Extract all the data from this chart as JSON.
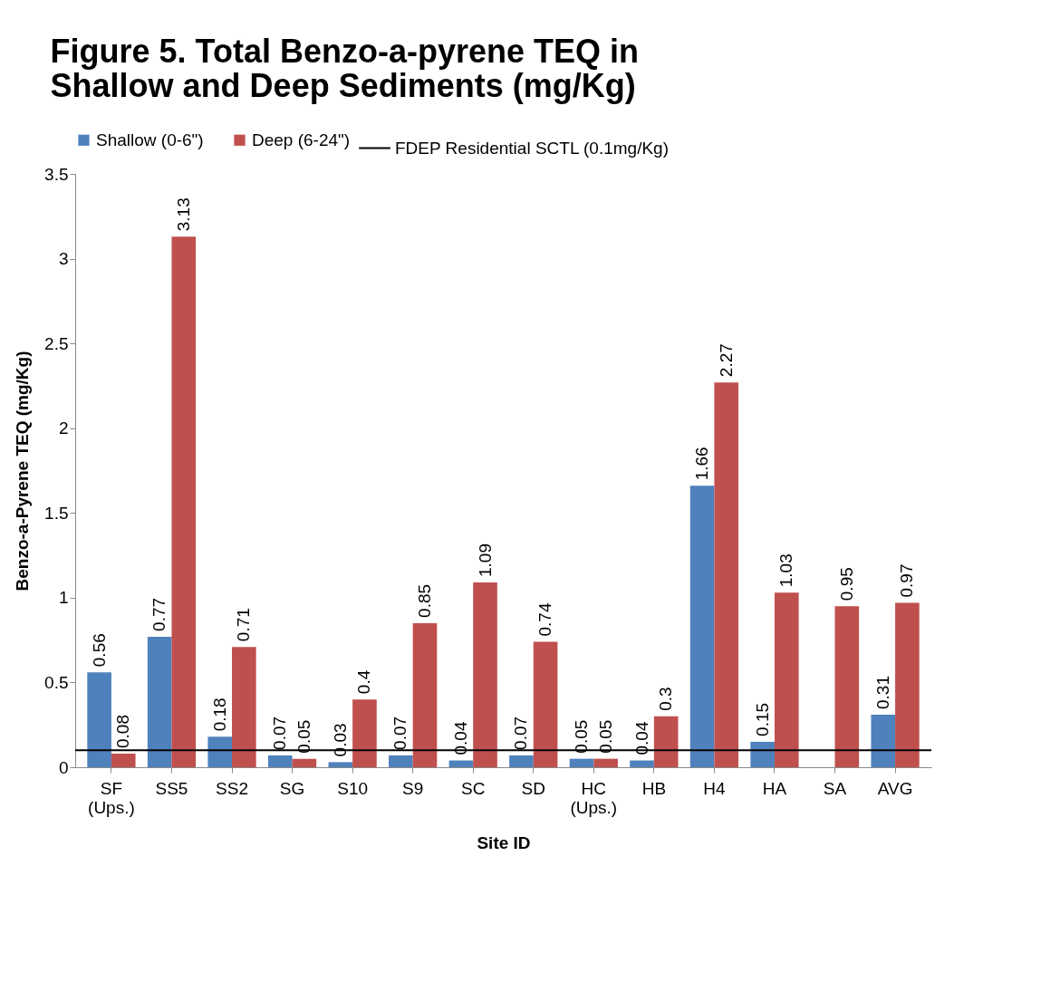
{
  "chart_data": {
    "type": "bar",
    "title": [
      "Figure 5.  Total  Benzo-a-pyrene TEQ in",
      "Shallow and Deep Sediments (mg/Kg)"
    ],
    "xlabel": "Site ID",
    "ylabel": "Benzo-a-Pyrene TEQ (mg/Kg)",
    "categories": [
      "SF (Ups.)",
      "SS5",
      "SS2",
      "SG",
      "S10",
      "S9",
      "SC",
      "SD",
      "HC (Ups.)",
      "HB",
      "H4",
      "HA",
      "SA",
      "AVG"
    ],
    "series": [
      {
        "name": "Shallow (0-6\")",
        "color": "#4f81bd",
        "values": [
          0.56,
          0.77,
          0.18,
          0.07,
          0.03,
          0.07,
          0.04,
          0.07,
          0.05,
          0.04,
          1.66,
          0.15,
          null,
          0.31
        ]
      },
      {
        "name": "Deep (6-24\")",
        "color": "#c0504d",
        "values": [
          0.08,
          3.13,
          0.71,
          0.05,
          0.4,
          0.85,
          1.09,
          0.74,
          0.05,
          0.3,
          2.27,
          1.03,
          0.95,
          0.97
        ]
      }
    ],
    "ylim": [
      0,
      3.5
    ],
    "yticks": [
      0,
      0.5,
      1,
      1.5,
      2,
      2.5,
      3,
      3.5
    ],
    "grid": false,
    "legend": "top",
    "data_labels": true,
    "ref_lines": [
      {
        "axis": "y",
        "value": 0.1,
        "label": "FDEP Residential SCTL (0.1mg/Kg)",
        "color": "#000000"
      }
    ]
  }
}
